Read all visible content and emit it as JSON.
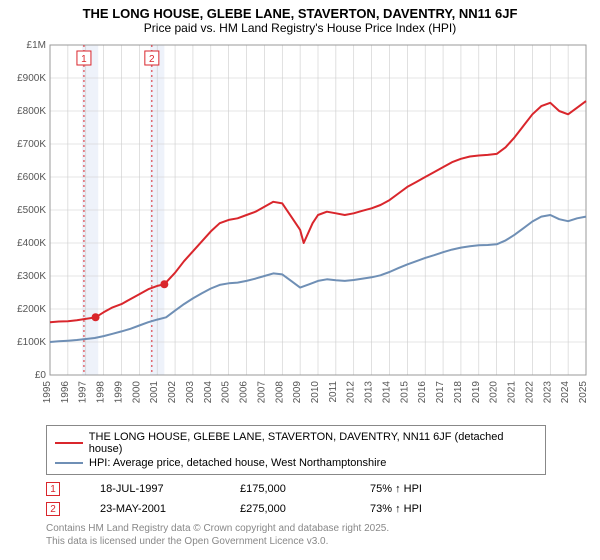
{
  "header": {
    "title_line1": "THE LONG HOUSE, GLEBE LANE, STAVERTON, DAVENTRY, NN11 6JF",
    "title_line2": "Price paid vs. HM Land Registry's House Price Index (HPI)"
  },
  "chart": {
    "type": "line",
    "background_color": "#ffffff",
    "plot_border_color": "#999999",
    "grid_color": "#cccccc",
    "tick_font_size": 10,
    "tick_color": "#555555",
    "x": {
      "min": 1995,
      "max": 2025,
      "tick_step": 1,
      "labels": [
        "1995",
        "1996",
        "1997",
        "1998",
        "1999",
        "2000",
        "2001",
        "2002",
        "2003",
        "2004",
        "2005",
        "2006",
        "2007",
        "2008",
        "2009",
        "2010",
        "2011",
        "2012",
        "2013",
        "2014",
        "2015",
        "2016",
        "2017",
        "2018",
        "2019",
        "2020",
        "2021",
        "2022",
        "2023",
        "2024",
        "2025"
      ]
    },
    "y": {
      "min": 0,
      "max": 1000000,
      "tick_step": 100000,
      "labels": [
        "£0",
        "£100K",
        "£200K",
        "£300K",
        "£400K",
        "£500K",
        "£600K",
        "£700K",
        "£800K",
        "£900K",
        "£1M"
      ]
    },
    "highlight_bands": [
      {
        "x_from": 1996.8,
        "x_to": 1997.7,
        "fill": "#eef2fa"
      },
      {
        "x_from": 2000.6,
        "x_to": 2001.4,
        "fill": "#eef2fa"
      }
    ],
    "sale_markers": [
      {
        "x": 1997.55,
        "y": 175000,
        "label": "1",
        "color": "#d9262c",
        "line_x": 1996.9
      },
      {
        "x": 2001.4,
        "y": 275000,
        "label": "2",
        "color": "#d9262c",
        "line_x": 2000.7
      }
    ],
    "series": [
      {
        "name": "THE LONG HOUSE, GLEBE LANE, STAVERTON, DAVENTRY, NN11 6JF (detached house)",
        "color": "#d9262c",
        "width": 2,
        "points": [
          [
            1995.0,
            160000
          ],
          [
            1995.5,
            162000
          ],
          [
            1996.0,
            163000
          ],
          [
            1996.5,
            166000
          ],
          [
            1997.0,
            170000
          ],
          [
            1997.55,
            175000
          ],
          [
            1998.0,
            190000
          ],
          [
            1998.5,
            205000
          ],
          [
            1999.0,
            215000
          ],
          [
            1999.5,
            230000
          ],
          [
            2000.0,
            245000
          ],
          [
            2000.5,
            260000
          ],
          [
            2001.0,
            270000
          ],
          [
            2001.4,
            275000
          ],
          [
            2002.0,
            310000
          ],
          [
            2002.5,
            345000
          ],
          [
            2003.0,
            375000
          ],
          [
            2003.5,
            405000
          ],
          [
            2004.0,
            435000
          ],
          [
            2004.5,
            460000
          ],
          [
            2005.0,
            470000
          ],
          [
            2005.5,
            475000
          ],
          [
            2006.0,
            485000
          ],
          [
            2006.5,
            495000
          ],
          [
            2007.0,
            510000
          ],
          [
            2007.5,
            525000
          ],
          [
            2008.0,
            520000
          ],
          [
            2008.5,
            480000
          ],
          [
            2009.0,
            440000
          ],
          [
            2009.2,
            400000
          ],
          [
            2009.7,
            460000
          ],
          [
            2010.0,
            485000
          ],
          [
            2010.5,
            495000
          ],
          [
            2011.0,
            490000
          ],
          [
            2011.5,
            485000
          ],
          [
            2012.0,
            490000
          ],
          [
            2012.5,
            498000
          ],
          [
            2013.0,
            505000
          ],
          [
            2013.5,
            515000
          ],
          [
            2014.0,
            530000
          ],
          [
            2014.5,
            550000
          ],
          [
            2015.0,
            570000
          ],
          [
            2015.5,
            585000
          ],
          [
            2016.0,
            600000
          ],
          [
            2016.5,
            615000
          ],
          [
            2017.0,
            630000
          ],
          [
            2017.5,
            645000
          ],
          [
            2018.0,
            655000
          ],
          [
            2018.5,
            662000
          ],
          [
            2019.0,
            665000
          ],
          [
            2019.5,
            667000
          ],
          [
            2020.0,
            670000
          ],
          [
            2020.5,
            690000
          ],
          [
            2021.0,
            720000
          ],
          [
            2021.5,
            755000
          ],
          [
            2022.0,
            790000
          ],
          [
            2022.5,
            815000
          ],
          [
            2023.0,
            825000
          ],
          [
            2023.5,
            800000
          ],
          [
            2024.0,
            790000
          ],
          [
            2024.5,
            810000
          ],
          [
            2025.0,
            830000
          ]
        ]
      },
      {
        "name": "HPI: Average price, detached house, West Northamptonshire",
        "color": "#6f8fb5",
        "width": 2,
        "points": [
          [
            1995.0,
            100000
          ],
          [
            1995.5,
            102000
          ],
          [
            1996.0,
            104000
          ],
          [
            1996.5,
            106000
          ],
          [
            1997.0,
            109000
          ],
          [
            1997.5,
            112000
          ],
          [
            1998.0,
            118000
          ],
          [
            1998.5,
            125000
          ],
          [
            1999.0,
            132000
          ],
          [
            1999.5,
            140000
          ],
          [
            2000.0,
            150000
          ],
          [
            2000.5,
            160000
          ],
          [
            2001.0,
            168000
          ],
          [
            2001.5,
            175000
          ],
          [
            2002.0,
            195000
          ],
          [
            2002.5,
            215000
          ],
          [
            2003.0,
            232000
          ],
          [
            2003.5,
            248000
          ],
          [
            2004.0,
            262000
          ],
          [
            2004.5,
            273000
          ],
          [
            2005.0,
            278000
          ],
          [
            2005.5,
            280000
          ],
          [
            2006.0,
            285000
          ],
          [
            2006.5,
            292000
          ],
          [
            2007.0,
            300000
          ],
          [
            2007.5,
            308000
          ],
          [
            2008.0,
            305000
          ],
          [
            2008.5,
            285000
          ],
          [
            2009.0,
            265000
          ],
          [
            2009.5,
            275000
          ],
          [
            2010.0,
            285000
          ],
          [
            2010.5,
            290000
          ],
          [
            2011.0,
            287000
          ],
          [
            2011.5,
            285000
          ],
          [
            2012.0,
            288000
          ],
          [
            2012.5,
            292000
          ],
          [
            2013.0,
            296000
          ],
          [
            2013.5,
            302000
          ],
          [
            2014.0,
            312000
          ],
          [
            2014.5,
            324000
          ],
          [
            2015.0,
            335000
          ],
          [
            2015.5,
            345000
          ],
          [
            2016.0,
            355000
          ],
          [
            2016.5,
            363000
          ],
          [
            2017.0,
            372000
          ],
          [
            2017.5,
            380000
          ],
          [
            2018.0,
            386000
          ],
          [
            2018.5,
            390000
          ],
          [
            2019.0,
            393000
          ],
          [
            2019.5,
            394000
          ],
          [
            2020.0,
            396000
          ],
          [
            2020.5,
            408000
          ],
          [
            2021.0,
            425000
          ],
          [
            2021.5,
            445000
          ],
          [
            2022.0,
            465000
          ],
          [
            2022.5,
            480000
          ],
          [
            2023.0,
            485000
          ],
          [
            2023.5,
            472000
          ],
          [
            2024.0,
            466000
          ],
          [
            2024.5,
            475000
          ],
          [
            2025.0,
            480000
          ]
        ]
      }
    ]
  },
  "legend": {
    "item1": "THE LONG HOUSE, GLEBE LANE, STAVERTON, DAVENTRY, NN11 6JF (detached house)",
    "item2": "HPI: Average price, detached house, West Northamptonshire",
    "color1": "#d9262c",
    "color2": "#6f8fb5"
  },
  "sales": [
    {
      "marker": "1",
      "marker_color": "#d9262c",
      "date": "18-JUL-1997",
      "price": "£175,000",
      "pct": "75% ↑ HPI"
    },
    {
      "marker": "2",
      "marker_color": "#d9262c",
      "date": "23-MAY-2001",
      "price": "£275,000",
      "pct": "73% ↑ HPI"
    }
  ],
  "footer": {
    "line1": "Contains HM Land Registry data © Crown copyright and database right 2025.",
    "line2": "This data is licensed under the Open Government Licence v3.0."
  }
}
